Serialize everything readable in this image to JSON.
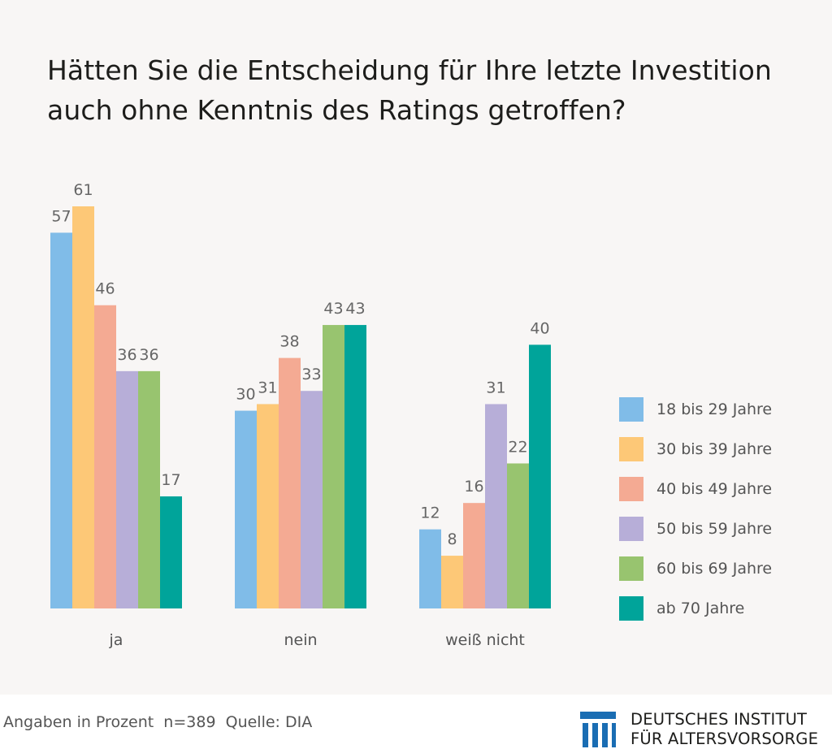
{
  "title_line1": "Hätten Sie die Entscheidung für Ihre letzte Investition",
  "title_line2": "auch ohne Kenntnis des Ratings getroffen?",
  "chart_data": {
    "type": "bar",
    "categories": [
      "ja",
      "nein",
      "weiß nicht"
    ],
    "series": [
      {
        "name": "18 bis 29 Jahre",
        "color": "#80bce8",
        "values": [
          57,
          30,
          12
        ]
      },
      {
        "name": "30 bis 39 Jahre",
        "color": "#fdc877",
        "values": [
          61,
          31,
          8
        ]
      },
      {
        "name": "40 bis 49 Jahre",
        "color": "#f4aa93",
        "values": [
          46,
          38,
          16
        ]
      },
      {
        "name": "50 bis 59 Jahre",
        "color": "#b7aed8",
        "values": [
          36,
          33,
          31
        ]
      },
      {
        "name": "60 bis 69 Jahre",
        "color": "#98c46f",
        "values": [
          36,
          43,
          22
        ]
      },
      {
        "name": "ab 70 Jahre",
        "color": "#00a49a",
        "values": [
          17,
          43,
          40
        ]
      }
    ],
    "value_labels": [
      [
        "57",
        "30",
        "12"
      ],
      [
        "61",
        "31",
        "8"
      ],
      [
        "46",
        "38",
        "16"
      ],
      [
        "36",
        "33",
        "31"
      ],
      [
        "36",
        "43",
        "22"
      ],
      [
        "17",
        "43",
        "40"
      ]
    ],
    "ylim": [
      0,
      61
    ],
    "grid": false,
    "legend_position": "right"
  },
  "footer": {
    "note": "Angaben in Prozent  n=389  Quelle: DIA",
    "logo_line1": "DEUTSCHES INSTITUT",
    "logo_line2": "FÜR ALTERSVORSORGE",
    "logo_color": "#1a6db3"
  }
}
